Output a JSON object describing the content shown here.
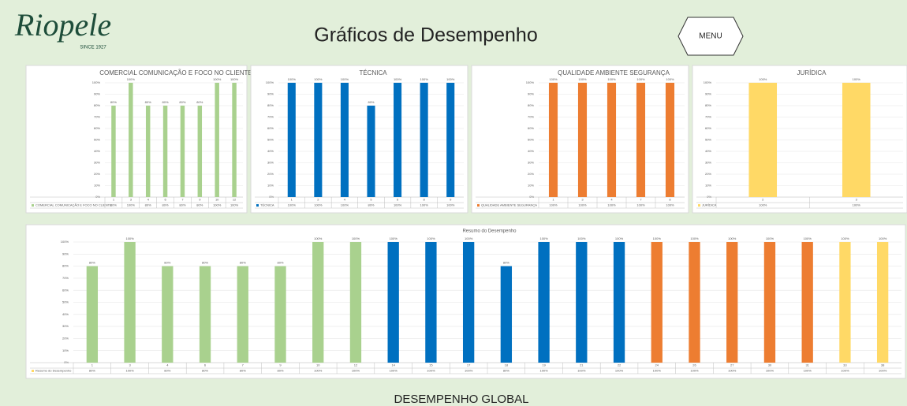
{
  "header": {
    "logo": "Riopele",
    "since": "SINCE 1927",
    "title": "Gráficos de Desempenho",
    "menu": "MENU"
  },
  "footer": "DESEMPENHO GLOBAL",
  "chart_data": [
    {
      "type": "bar",
      "title": "COMERCIAL COMUNICAÇÃO E FOCO NO CLIENTE",
      "categories": [
        "1",
        "3",
        "4",
        "6",
        "7",
        "9",
        "10",
        "12"
      ],
      "series": [
        {
          "name": "COMERCIAL COMUNICAÇÃO E FOCO NO CLIENTE",
          "color": "#a9d18e",
          "values": [
            80,
            100,
            80,
            80,
            80,
            80,
            100,
            100
          ],
          "value_labels": [
            "80%",
            "100%",
            "80%",
            "80%",
            "80%",
            "80%",
            "100%",
            "100%"
          ]
        }
      ],
      "ylim": [
        0,
        100
      ],
      "yticks": [
        {
          "value": 0,
          "label": "0%"
        },
        {
          "value": 10,
          "label": "10%"
        },
        {
          "value": 20,
          "label": "20%"
        },
        {
          "value": 30,
          "label": "30%"
        },
        {
          "value": 40,
          "label": "40%"
        },
        {
          "value": 50,
          "label": "50%"
        },
        {
          "value": 60,
          "label": "60%"
        },
        {
          "value": 70,
          "label": "70%"
        },
        {
          "value": 80,
          "label": "80%"
        },
        {
          "value": 90,
          "label": "90%"
        },
        {
          "value": 100,
          "label": "100%"
        }
      ],
      "grid": true
    },
    {
      "type": "bar",
      "title": "TÉCNICA",
      "categories": [
        "1",
        "2",
        "4",
        "5",
        "6",
        "8",
        "9"
      ],
      "series": [
        {
          "name": "TÉCNICA",
          "color": "#0070c0",
          "values": [
            100,
            100,
            100,
            80,
            100,
            100,
            100
          ],
          "value_labels": [
            "100%",
            "100%",
            "100%",
            "80%",
            "100%",
            "100%",
            "100%"
          ]
        }
      ],
      "ylim": [
        0,
        100
      ],
      "yticks": [
        {
          "value": 0,
          "label": "0%"
        },
        {
          "value": 10,
          "label": "10%"
        },
        {
          "value": 20,
          "label": "20%"
        },
        {
          "value": 30,
          "label": "30%"
        },
        {
          "value": 40,
          "label": "40%"
        },
        {
          "value": 50,
          "label": "50%"
        },
        {
          "value": 60,
          "label": "60%"
        },
        {
          "value": 70,
          "label": "70%"
        },
        {
          "value": 80,
          "label": "80%"
        },
        {
          "value": 90,
          "label": "90%"
        },
        {
          "value": 100,
          "label": "100%"
        }
      ],
      "grid": true
    },
    {
      "type": "bar",
      "title": "QUALIDADE  AMBIENTE  SEGURANÇA",
      "categories": [
        "1",
        "3",
        "4",
        "7",
        "8"
      ],
      "series": [
        {
          "name": "QUALIDADE  AMBIENTE  SEGURANÇA",
          "color": "#ed7d31",
          "values": [
            100,
            100,
            100,
            100,
            100
          ],
          "value_labels": [
            "100%",
            "100%",
            "100%",
            "100%",
            "100%"
          ]
        }
      ],
      "ylim": [
        0,
        100
      ],
      "yticks": [
        {
          "value": 0,
          "label": "0%"
        },
        {
          "value": 10,
          "label": "10%"
        },
        {
          "value": 20,
          "label": "20%"
        },
        {
          "value": 30,
          "label": "30%"
        },
        {
          "value": 40,
          "label": "40%"
        },
        {
          "value": 50,
          "label": "50%"
        },
        {
          "value": 60,
          "label": "60%"
        },
        {
          "value": 70,
          "label": "70%"
        },
        {
          "value": 80,
          "label": "80%"
        },
        {
          "value": 90,
          "label": "90%"
        },
        {
          "value": 100,
          "label": "100%"
        }
      ],
      "grid": true
    },
    {
      "type": "bar",
      "title": "JURÍDICA",
      "categories": [
        "2",
        "3"
      ],
      "series": [
        {
          "name": "JURÍDICA",
          "color": "#ffd966",
          "values": [
            100,
            100
          ],
          "value_labels": [
            "100%",
            "100%"
          ]
        }
      ],
      "ylim": [
        0,
        100
      ],
      "yticks": [
        {
          "value": 0,
          "label": "0%"
        },
        {
          "value": 10,
          "label": "10%"
        },
        {
          "value": 20,
          "label": "20%"
        },
        {
          "value": 30,
          "label": "30%"
        },
        {
          "value": 40,
          "label": "40%"
        },
        {
          "value": 50,
          "label": "50%"
        },
        {
          "value": 60,
          "label": "60%"
        },
        {
          "value": 70,
          "label": "70%"
        },
        {
          "value": 80,
          "label": "80%"
        },
        {
          "value": 90,
          "label": "90%"
        },
        {
          "value": 100,
          "label": "100%"
        }
      ],
      "grid": true
    },
    {
      "type": "bar",
      "title": "Resumo do Desempenho",
      "categories": [
        "1",
        "3",
        "4",
        "6",
        "7",
        "9",
        "10",
        "12",
        "14",
        "15",
        "17",
        "18",
        "19",
        "21",
        "22",
        "24",
        "26",
        "27",
        "30",
        "31",
        "33",
        "38"
      ],
      "series": [
        {
          "name": "Resumo do Desempenho",
          "color": "#ffd966",
          "colors": [
            "#a9d18e",
            "#a9d18e",
            "#a9d18e",
            "#a9d18e",
            "#a9d18e",
            "#a9d18e",
            "#a9d18e",
            "#a9d18e",
            "#0070c0",
            "#0070c0",
            "#0070c0",
            "#0070c0",
            "#0070c0",
            "#0070c0",
            "#0070c0",
            "#ed7d31",
            "#ed7d31",
            "#ed7d31",
            "#ed7d31",
            "#ed7d31",
            "#ffd966",
            "#ffd966"
          ],
          "values": [
            80,
            100,
            80,
            80,
            80,
            80,
            100,
            100,
            100,
            100,
            100,
            80,
            100,
            100,
            100,
            100,
            100,
            100,
            100,
            100,
            100,
            100
          ],
          "value_labels": [
            "80%",
            "100%",
            "80%",
            "80%",
            "80%",
            "80%",
            "100%",
            "100%",
            "100%",
            "100%",
            "100%",
            "80%",
            "100%",
            "100%",
            "100%",
            "100%",
            "100%",
            "100%",
            "100%",
            "100%",
            "100%",
            "100%"
          ]
        }
      ],
      "ylim": [
        0,
        100
      ],
      "yticks": [
        {
          "value": 0,
          "label": "0%"
        },
        {
          "value": 10,
          "label": "10%"
        },
        {
          "value": 20,
          "label": "20%"
        },
        {
          "value": 30,
          "label": "30%"
        },
        {
          "value": 40,
          "label": "40%"
        },
        {
          "value": 50,
          "label": "50%"
        },
        {
          "value": 60,
          "label": "60%"
        },
        {
          "value": 70,
          "label": "70%"
        },
        {
          "value": 80,
          "label": "80%"
        },
        {
          "value": 90,
          "label": "90%"
        },
        {
          "value": 100,
          "label": "100%"
        }
      ],
      "grid": true
    }
  ]
}
